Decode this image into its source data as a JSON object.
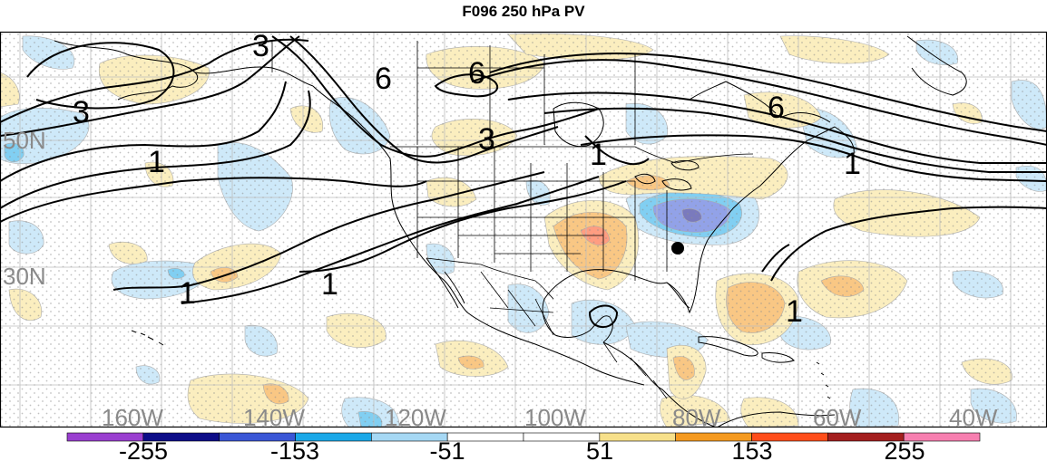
{
  "title": "F096 250 hPa PV",
  "longitude_labels": [
    "160W",
    "140W",
    "120W",
    "100W",
    "80W",
    "60W",
    "40W"
  ],
  "latitude_labels": [
    "50N",
    "30N"
  ],
  "contour_labels": [
    "3",
    "3",
    "6",
    "6",
    "3",
    "6",
    "1",
    "1",
    "1",
    "1",
    "1",
    "1"
  ],
  "colorbar": {
    "labels": [
      "-255",
      "-153",
      "-51",
      "51",
      "153",
      "255"
    ],
    "colors": [
      "#9a3fd0",
      "#0d0d88",
      "#3a56d6",
      "#1aa8e8",
      "#a6d8f4",
      "#ffffff",
      "#ffffff",
      "#f7e08a",
      "#f59a20",
      "#ff4d1a",
      "#a41e1e",
      "#f77fb0"
    ]
  },
  "anomaly_colors": {
    "neg_light": "#a6d8f4",
    "neg_mid": "#1aa8e8",
    "neg_strong": "#3a56d6",
    "neg_max": "#0d0d88",
    "pos_light": "#f7e08a",
    "pos_mid": "#f59a20",
    "pos_strong": "#ff4d1a"
  }
}
